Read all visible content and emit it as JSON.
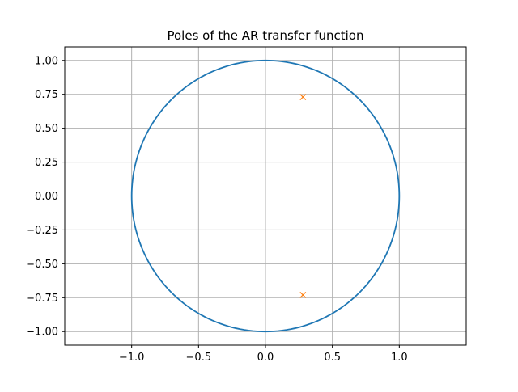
{
  "chart_data": {
    "type": "scatter",
    "title": "Poles of the AR transfer function",
    "xlabel": "",
    "ylabel": "",
    "xlim": [
      -1.5,
      1.5
    ],
    "ylim": [
      -1.1,
      1.1
    ],
    "grid": true,
    "x_ticks": [
      -1.0,
      -0.5,
      0.0,
      0.5,
      1.0
    ],
    "x_tick_labels": [
      "−1.0",
      "−0.5",
      "0.0",
      "0.5",
      "1.0"
    ],
    "y_ticks": [
      -1.0,
      -0.75,
      -0.5,
      -0.25,
      0.0,
      0.25,
      0.5,
      0.75,
      1.0
    ],
    "y_tick_labels": [
      "−1.00",
      "−0.75",
      "−0.50",
      "−0.25",
      "0.00",
      "0.25",
      "0.50",
      "0.75",
      "1.00"
    ],
    "series": [
      {
        "kind": "unit-circle-line",
        "color": "#1f77b4",
        "center": [
          0,
          0
        ],
        "radius": 1.0
      },
      {
        "kind": "pole-markers",
        "marker": "x",
        "color": "#ff7f0e",
        "x": [
          0.28,
          0.28
        ],
        "y": [
          0.73,
          -0.73
        ]
      }
    ]
  }
}
